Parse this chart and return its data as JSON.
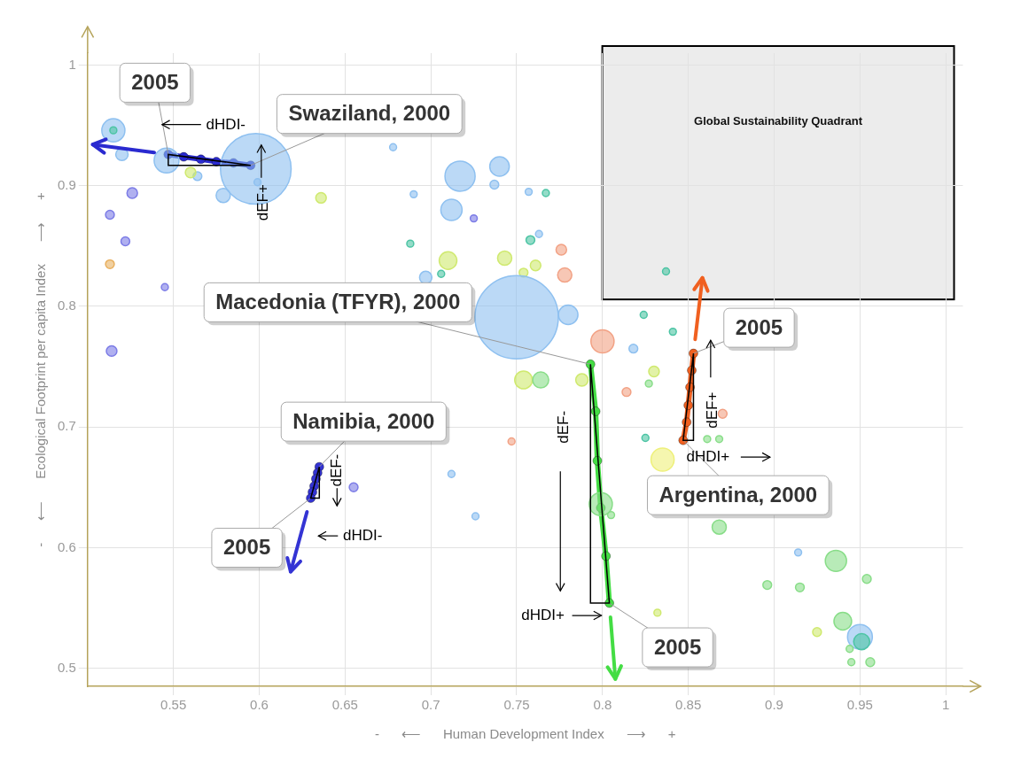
{
  "chart_data": {
    "type": "bubble",
    "xlabel": "-      ⟵      Human Development Index      ⟶      +",
    "ylabel": "-      ⟵      Ecological Footprint per capita Index      ⟶      +",
    "xlim": [
      0.5,
      1.01
    ],
    "ylim": [
      0.485,
      1.01
    ],
    "xticks": [
      0.55,
      0.6,
      0.65,
      0.7,
      0.75,
      0.8,
      0.85,
      0.9,
      0.95,
      1
    ],
    "yticks": [
      0.5,
      0.6,
      0.7,
      0.8,
      0.9,
      1
    ],
    "grid": true,
    "marker": "circle",
    "series": [
      {
        "x": [
          0.515,
          0.515,
          0.52,
          0.546,
          0.564,
          0.56,
          0.526,
          0.513,
          0.522,
          0.513,
          0.545,
          0.514,
          0.598,
          0.579,
          0.599,
          0.636,
          0.678,
          0.69,
          0.712,
          0.717,
          0.725,
          0.74,
          0.737,
          0.757,
          0.767,
          0.688,
          0.697,
          0.706,
          0.71,
          0.743,
          0.754,
          0.761,
          0.758,
          0.763,
          0.776,
          0.778,
          0.75,
          0.78,
          0.8,
          0.818,
          0.824,
          0.837,
          0.841,
          0.754,
          0.764,
          0.788,
          0.83,
          0.827,
          0.814,
          0.747,
          0.825,
          0.835,
          0.87,
          0.861,
          0.868,
          0.712,
          0.726,
          0.655,
          0.868,
          0.805,
          0.799,
          0.832,
          0.914,
          0.936,
          0.896,
          0.915,
          0.954,
          0.925,
          0.94,
          0.95,
          0.951,
          0.944,
          0.956,
          0.945
        ],
        "values": [
          0.946,
          0.946,
          0.926,
          0.921,
          0.908,
          0.911,
          0.894,
          0.876,
          0.854,
          0.835,
          0.816,
          0.763,
          0.914,
          0.892,
          0.903,
          0.89,
          0.932,
          0.893,
          0.88,
          0.908,
          0.873,
          0.916,
          0.901,
          0.895,
          0.894,
          0.852,
          0.824,
          0.827,
          0.838,
          0.84,
          0.828,
          0.834,
          0.855,
          0.86,
          0.847,
          0.826,
          0.791,
          0.793,
          0.771,
          0.765,
          0.793,
          0.829,
          0.779,
          0.739,
          0.739,
          0.739,
          0.746,
          0.736,
          0.729,
          0.688,
          0.691,
          0.673,
          0.711,
          0.69,
          0.69,
          0.661,
          0.626,
          0.65,
          0.617,
          0.627,
          0.636,
          0.546,
          0.596,
          0.589,
          0.569,
          0.567,
          0.574,
          0.53,
          0.539,
          0.526,
          0.522,
          0.516,
          0.505,
          0.505
        ],
        "sizes": [
          0.077,
          0.007,
          0.022,
          0.089,
          0.011,
          0.016,
          0.016,
          0.011,
          0.011,
          0.011,
          0.007,
          0.016,
          0.72,
          0.029,
          0.007,
          0.016,
          0.007,
          0.007,
          0.065,
          0.131,
          0.007,
          0.055,
          0.011,
          0.007,
          0.007,
          0.007,
          0.022,
          0.007,
          0.045,
          0.029,
          0.011,
          0.016,
          0.011,
          0.007,
          0.016,
          0.029,
          1,
          0.055,
          0.077,
          0.011,
          0.007,
          0.007,
          0.007,
          0.045,
          0.037,
          0.022,
          0.016,
          0.007,
          0.011,
          0.007,
          0.007,
          0.077,
          0.011,
          0.007,
          0.007,
          0.007,
          0.007,
          0.011,
          0.029,
          0.007,
          0.077,
          0.007,
          0.007,
          0.065,
          0.011,
          0.011,
          0.011,
          0.011,
          0.045,
          0.089,
          0.037,
          0.007,
          0.011,
          0.007
        ],
        "colors": [
          "#8ec0f0",
          "#4cc4a4",
          "#8ec0f0",
          "#8ec0f0",
          "#8ec0f0",
          "#cfe96e",
          "#7c7ce6",
          "#7c7ce6",
          "#7c7ce6",
          "#e8b060",
          "#7c7ce6",
          "#7c7ce6",
          "#8ec0f0",
          "#8ec0f0",
          "#8ec0f0",
          "#cfe96e",
          "#8ec0f0",
          "#8ec0f0",
          "#8ec0f0",
          "#8ec0f0",
          "#7c7ce6",
          "#8ec0f0",
          "#8ec0f0",
          "#8ec0f0",
          "#4cc4a4",
          "#4cc4a4",
          "#8ec0f0",
          "#4cc4a4",
          "#cfe96e",
          "#cfe96e",
          "#cfe96e",
          "#cfe96e",
          "#4cc4a4",
          "#8ec0f0",
          "#f2a184",
          "#f2a184",
          "#8ec0f0",
          "#8ec0f0",
          "#f2a184",
          "#8ec0f0",
          "#4cc4a4",
          "#4cc4a4",
          "#4cc4a4",
          "#cfe96e",
          "#88dd88",
          "#cfe96e",
          "#cfe96e",
          "#88dd88",
          "#f2a184",
          "#f2a184",
          "#4cc4a4",
          "#eef07a",
          "#f2a184",
          "#88dd88",
          "#88dd88",
          "#8ec0f0",
          "#8ec0f0",
          "#7c7ce6",
          "#88dd88",
          "#88dd88",
          "#88dd88",
          "#cfe96e",
          "#8ec0f0",
          "#88dd88",
          "#88dd88",
          "#88dd88",
          "#88dd88",
          "#cfe96e",
          "#88dd88",
          "#8ec0f0",
          "#4cc4a4",
          "#88dd88",
          "#88dd88",
          "#88dd88"
        ]
      },
      {
        "type": "line",
        "color": "#2a2ad0",
        "x": [
          0.595,
          0.585,
          0.575,
          0.566,
          0.556,
          0.547
        ],
        "values": [
          0.917,
          0.919,
          0.92,
          0.922,
          0.924,
          0.926
        ]
      },
      {
        "type": "line",
        "color": "#3434d4",
        "x": [
          0.635,
          0.634,
          0.633,
          0.632,
          0.631,
          0.63
        ],
        "values": [
          0.667,
          0.662,
          0.657,
          0.651,
          0.646,
          0.641
        ]
      },
      {
        "type": "line",
        "color": "#44dd44",
        "x": [
          0.793,
          0.796,
          0.797,
          0.799,
          0.802,
          0.804
        ],
        "values": [
          0.752,
          0.713,
          0.672,
          0.633,
          0.593,
          0.554
        ]
      },
      {
        "type": "line",
        "color": "#f06020",
        "x": [
          0.847,
          0.849,
          0.85,
          0.851,
          0.852,
          0.853
        ],
        "values": [
          0.689,
          0.704,
          0.718,
          0.733,
          0.747,
          0.761
        ]
      }
    ],
    "annotations": [
      "Global Sustainability Quadrant",
      {
        "text": "2005",
        "x": 0.547,
        "y": 0.926
      },
      {
        "text": "Swaziland, 2000",
        "x": 0.595,
        "y": 0.917
      },
      {
        "text": "Macedonia (TFYR), 2000",
        "x": 0.793,
        "y": 0.752
      },
      {
        "text": "2005",
        "x": 0.853,
        "y": 0.761
      },
      {
        "text": "Namibia, 2000",
        "x": 0.635,
        "y": 0.667
      },
      {
        "text": "Argentina, 2000",
        "x": 0.847,
        "y": 0.689
      },
      {
        "text": "2005",
        "x": 0.63,
        "y": 0.641
      },
      {
        "text": "2005",
        "x": 0.804,
        "y": 0.554
      },
      "dHDI-",
      "dEF+",
      "dHDI-",
      "dEF-",
      "dEF-",
      "dHDI+",
      "dEF+",
      "dHDI+"
    ]
  }
}
